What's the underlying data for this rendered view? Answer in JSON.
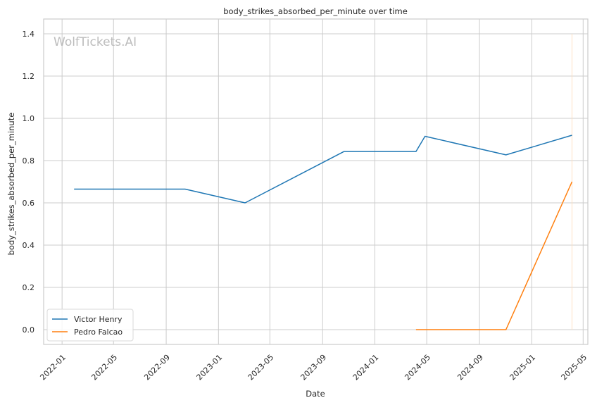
{
  "chart_data": {
    "type": "line",
    "title": "body_strikes_absorbed_per_minute over time",
    "xlabel": "Date",
    "ylabel": "body_strikes_absorbed_per_minute",
    "watermark": "WolfTickets.AI",
    "x_range": [
      "2021-11-19",
      "2025-05-12"
    ],
    "ylim": [
      -0.07,
      1.47
    ],
    "x_ticks": [
      "2022-01",
      "2022-05",
      "2022-09",
      "2023-01",
      "2023-05",
      "2023-09",
      "2024-01",
      "2024-05",
      "2024-09",
      "2025-01",
      "2025-05"
    ],
    "y_ticks": [
      0.0,
      0.2,
      0.4,
      0.6,
      0.8,
      1.0,
      1.2,
      1.4
    ],
    "y_tick_labels": [
      "0.0",
      "0.2",
      "0.4",
      "0.6",
      "0.8",
      "1.0",
      "1.2",
      "1.4"
    ],
    "grid": true,
    "legend_position": "lower-left",
    "series": [
      {
        "name": "Victor Henry",
        "color": "#1f77b4",
        "points": [
          {
            "x": "2022-01-29",
            "y": 0.665
          },
          {
            "x": "2022-10-15",
            "y": 0.665
          },
          {
            "x": "2023-03-04",
            "y": 0.6
          },
          {
            "x": "2023-10-21",
            "y": 0.843
          },
          {
            "x": "2024-04-06",
            "y": 0.843
          },
          {
            "x": "2024-04-27",
            "y": 0.915
          },
          {
            "x": "2024-11-02",
            "y": 0.827
          },
          {
            "x": "2025-04-05",
            "y": 0.92
          }
        ]
      },
      {
        "name": "Pedro Falcao",
        "color": "#ff7f0e",
        "points": [
          {
            "x": "2024-04-06",
            "y": 0.0
          },
          {
            "x": "2024-11-02",
            "y": 0.0
          },
          {
            "x": "2025-04-05",
            "y": 0.7
          }
        ]
      }
    ],
    "reference_line": {
      "x": "2025-04-05",
      "color": "#ffe0c2"
    }
  }
}
